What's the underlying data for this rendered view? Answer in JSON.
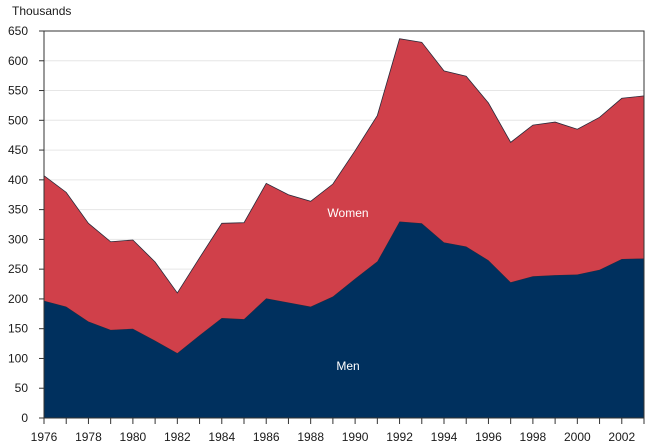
{
  "chart_data": {
    "type": "area",
    "stacked": true,
    "ylabel": "Thousands",
    "ylim": [
      0,
      650
    ],
    "yticks": [
      0,
      50,
      100,
      150,
      200,
      250,
      300,
      350,
      400,
      450,
      500,
      550,
      600,
      650
    ],
    "xlim": [
      1976,
      2003
    ],
    "xticks": [
      1976,
      1978,
      1980,
      1982,
      1984,
      1986,
      1988,
      1990,
      1992,
      1994,
      1996,
      1998,
      2000,
      2002
    ],
    "x": [
      1976,
      1977,
      1978,
      1979,
      1980,
      1981,
      1982,
      1983,
      1984,
      1985,
      1986,
      1987,
      1988,
      1989,
      1990,
      1991,
      1992,
      1993,
      1994,
      1995,
      1996,
      1997,
      1998,
      1999,
      2000,
      2001,
      2002,
      2003
    ],
    "series": [
      {
        "name": "Men",
        "color": "#00305e",
        "values": [
          197,
          187,
          162,
          148,
          150,
          130,
          109,
          139,
          168,
          166,
          201,
          194,
          187,
          204,
          234,
          263,
          330,
          327,
          295,
          288,
          265,
          228,
          238,
          240,
          241,
          249,
          267,
          268
        ]
      },
      {
        "name": "Women",
        "color": "#d0404a",
        "values": [
          210,
          192,
          165,
          148,
          149,
          132,
          101,
          130,
          159,
          162,
          193,
          181,
          177,
          189,
          215,
          245,
          307,
          304,
          288,
          286,
          264,
          235,
          254,
          257,
          244,
          256,
          270,
          273
        ]
      }
    ]
  }
}
